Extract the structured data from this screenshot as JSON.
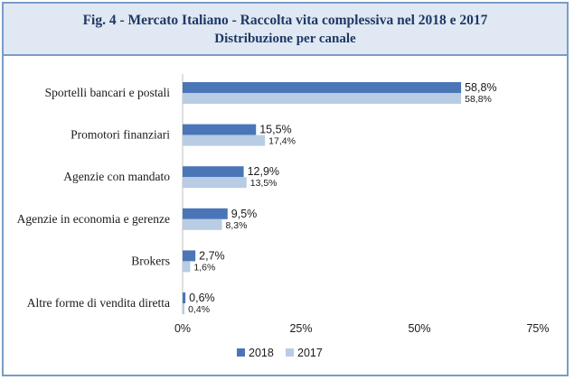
{
  "header": {
    "title": "Fig. 4 - Mercato Italiano - Raccolta vita complessiva nel 2018 e 2017",
    "subtitle": "Distribuzione per canale"
  },
  "chart_data": {
    "type": "bar",
    "orientation": "horizontal",
    "title": "Fig. 4 - Mercato Italiano - Raccolta vita complessiva nel 2018 e 2017",
    "subtitle": "Distribuzione per canale",
    "categories": [
      "Sportelli bancari e postali",
      "Promotori finanziari",
      "Agenzie con mandato",
      "Agenzie in economia e gerenze",
      "Brokers",
      "Altre forme di vendita diretta"
    ],
    "series": [
      {
        "name": "2018",
        "color": "#4a76b8",
        "values": [
          58.8,
          15.5,
          12.9,
          9.5,
          2.7,
          0.6
        ],
        "labels": [
          "58,8%",
          "15,5%",
          "12,9%",
          "9,5%",
          "2,7%",
          "0,6%"
        ]
      },
      {
        "name": "2017",
        "color": "#b8cce4",
        "values": [
          58.8,
          17.4,
          13.5,
          8.3,
          1.6,
          0.4
        ],
        "labels": [
          "58,8%",
          "17,4%",
          "13,5%",
          "8,3%",
          "1,6%",
          "0,4%"
        ]
      }
    ],
    "xlim": [
      0,
      75
    ],
    "xticks": [
      0,
      25,
      50,
      75
    ],
    "xtick_labels": [
      "0%",
      "25%",
      "50%",
      "75%"
    ],
    "legend": "bottom-left",
    "grid": false
  }
}
